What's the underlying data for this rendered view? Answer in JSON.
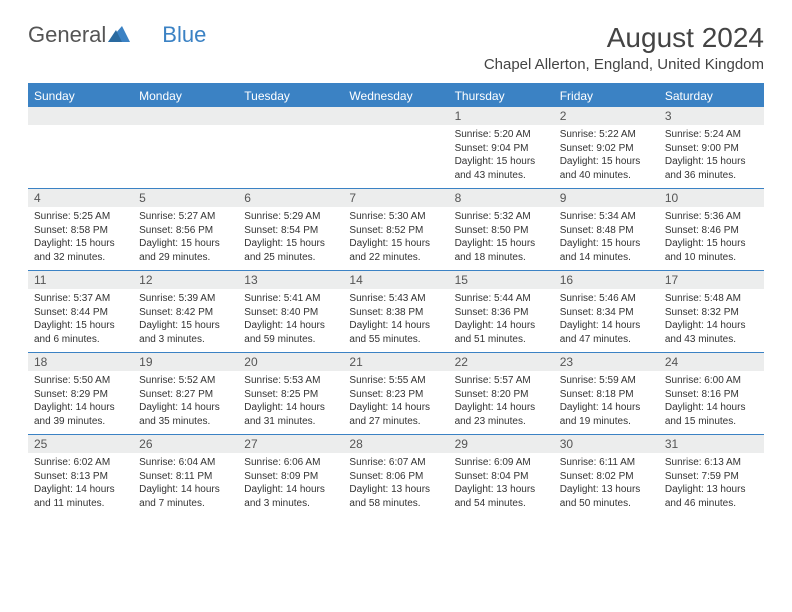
{
  "brand": {
    "name_prefix": "General",
    "name_suffix": "Blue"
  },
  "title": "August 2024",
  "location": "Chapel Allerton, England, United Kingdom",
  "colors": {
    "accent": "#3b82c4",
    "header_bg": "#3b82c4",
    "daynum_bg": "#eceded",
    "text": "#333333",
    "background": "#ffffff"
  },
  "weekdays": [
    "Sunday",
    "Monday",
    "Tuesday",
    "Wednesday",
    "Thursday",
    "Friday",
    "Saturday"
  ],
  "weeks": [
    [
      null,
      null,
      null,
      null,
      {
        "day": "1",
        "sunrise": "5:20 AM",
        "sunset": "9:04 PM",
        "daylight": "15 hours and 43 minutes."
      },
      {
        "day": "2",
        "sunrise": "5:22 AM",
        "sunset": "9:02 PM",
        "daylight": "15 hours and 40 minutes."
      },
      {
        "day": "3",
        "sunrise": "5:24 AM",
        "sunset": "9:00 PM",
        "daylight": "15 hours and 36 minutes."
      }
    ],
    [
      {
        "day": "4",
        "sunrise": "5:25 AM",
        "sunset": "8:58 PM",
        "daylight": "15 hours and 32 minutes."
      },
      {
        "day": "5",
        "sunrise": "5:27 AM",
        "sunset": "8:56 PM",
        "daylight": "15 hours and 29 minutes."
      },
      {
        "day": "6",
        "sunrise": "5:29 AM",
        "sunset": "8:54 PM",
        "daylight": "15 hours and 25 minutes."
      },
      {
        "day": "7",
        "sunrise": "5:30 AM",
        "sunset": "8:52 PM",
        "daylight": "15 hours and 22 minutes."
      },
      {
        "day": "8",
        "sunrise": "5:32 AM",
        "sunset": "8:50 PM",
        "daylight": "15 hours and 18 minutes."
      },
      {
        "day": "9",
        "sunrise": "5:34 AM",
        "sunset": "8:48 PM",
        "daylight": "15 hours and 14 minutes."
      },
      {
        "day": "10",
        "sunrise": "5:36 AM",
        "sunset": "8:46 PM",
        "daylight": "15 hours and 10 minutes."
      }
    ],
    [
      {
        "day": "11",
        "sunrise": "5:37 AM",
        "sunset": "8:44 PM",
        "daylight": "15 hours and 6 minutes."
      },
      {
        "day": "12",
        "sunrise": "5:39 AM",
        "sunset": "8:42 PM",
        "daylight": "15 hours and 3 minutes."
      },
      {
        "day": "13",
        "sunrise": "5:41 AM",
        "sunset": "8:40 PM",
        "daylight": "14 hours and 59 minutes."
      },
      {
        "day": "14",
        "sunrise": "5:43 AM",
        "sunset": "8:38 PM",
        "daylight": "14 hours and 55 minutes."
      },
      {
        "day": "15",
        "sunrise": "5:44 AM",
        "sunset": "8:36 PM",
        "daylight": "14 hours and 51 minutes."
      },
      {
        "day": "16",
        "sunrise": "5:46 AM",
        "sunset": "8:34 PM",
        "daylight": "14 hours and 47 minutes."
      },
      {
        "day": "17",
        "sunrise": "5:48 AM",
        "sunset": "8:32 PM",
        "daylight": "14 hours and 43 minutes."
      }
    ],
    [
      {
        "day": "18",
        "sunrise": "5:50 AM",
        "sunset": "8:29 PM",
        "daylight": "14 hours and 39 minutes."
      },
      {
        "day": "19",
        "sunrise": "5:52 AM",
        "sunset": "8:27 PM",
        "daylight": "14 hours and 35 minutes."
      },
      {
        "day": "20",
        "sunrise": "5:53 AM",
        "sunset": "8:25 PM",
        "daylight": "14 hours and 31 minutes."
      },
      {
        "day": "21",
        "sunrise": "5:55 AM",
        "sunset": "8:23 PM",
        "daylight": "14 hours and 27 minutes."
      },
      {
        "day": "22",
        "sunrise": "5:57 AM",
        "sunset": "8:20 PM",
        "daylight": "14 hours and 23 minutes."
      },
      {
        "day": "23",
        "sunrise": "5:59 AM",
        "sunset": "8:18 PM",
        "daylight": "14 hours and 19 minutes."
      },
      {
        "day": "24",
        "sunrise": "6:00 AM",
        "sunset": "8:16 PM",
        "daylight": "14 hours and 15 minutes."
      }
    ],
    [
      {
        "day": "25",
        "sunrise": "6:02 AM",
        "sunset": "8:13 PM",
        "daylight": "14 hours and 11 minutes."
      },
      {
        "day": "26",
        "sunrise": "6:04 AM",
        "sunset": "8:11 PM",
        "daylight": "14 hours and 7 minutes."
      },
      {
        "day": "27",
        "sunrise": "6:06 AM",
        "sunset": "8:09 PM",
        "daylight": "14 hours and 3 minutes."
      },
      {
        "day": "28",
        "sunrise": "6:07 AM",
        "sunset": "8:06 PM",
        "daylight": "13 hours and 58 minutes."
      },
      {
        "day": "29",
        "sunrise": "6:09 AM",
        "sunset": "8:04 PM",
        "daylight": "13 hours and 54 minutes."
      },
      {
        "day": "30",
        "sunrise": "6:11 AM",
        "sunset": "8:02 PM",
        "daylight": "13 hours and 50 minutes."
      },
      {
        "day": "31",
        "sunrise": "6:13 AM",
        "sunset": "7:59 PM",
        "daylight": "13 hours and 46 minutes."
      }
    ]
  ],
  "labels": {
    "sunrise": "Sunrise",
    "sunset": "Sunset",
    "daylight": "Daylight"
  }
}
